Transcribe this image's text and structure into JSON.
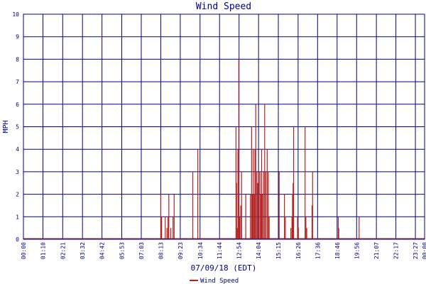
{
  "chart_data": {
    "type": "bar",
    "title": "Wind Speed",
    "xlabel": "07/09/18 (EDT)",
    "ylabel": "MPH",
    "ylim": [
      0,
      10
    ],
    "yticks": [
      "0",
      "1",
      "2",
      "3",
      "4",
      "5",
      "6",
      "7",
      "8",
      "9",
      "10"
    ],
    "xlim_minutes": [
      0,
      1440
    ],
    "xticks": [
      {
        "label": "00:00",
        "minute": 0
      },
      {
        "label": "01:10",
        "minute": 70
      },
      {
        "label": "02:21",
        "minute": 141
      },
      {
        "label": "03:32",
        "minute": 212
      },
      {
        "label": "04:42",
        "minute": 282
      },
      {
        "label": "05:53",
        "minute": 353
      },
      {
        "label": "07:03",
        "minute": 423
      },
      {
        "label": "08:13",
        "minute": 493
      },
      {
        "label": "09:23",
        "minute": 563
      },
      {
        "label": "10:34",
        "minute": 634
      },
      {
        "label": "11:44",
        "minute": 704
      },
      {
        "label": "12:54",
        "minute": 774
      },
      {
        "label": "14:04",
        "minute": 844
      },
      {
        "label": "15:15",
        "minute": 915
      },
      {
        "label": "16:26",
        "minute": 986
      },
      {
        "label": "17:36",
        "minute": 1056
      },
      {
        "label": "18:46",
        "minute": 1126
      },
      {
        "label": "19:56",
        "minute": 1196
      },
      {
        "label": "21:07",
        "minute": 1267
      },
      {
        "label": "22:17",
        "minute": 1337
      },
      {
        "label": "23:27",
        "minute": 1407
      },
      {
        "label": "00:00",
        "minute": 1440
      }
    ],
    "grid": true,
    "legend_position": "bottom-center",
    "series": [
      {
        "name": "Wind Speed",
        "color": "#b22222",
        "points": [
          {
            "t": 493,
            "v": 2
          },
          {
            "t": 496,
            "v": 1
          },
          {
            "t": 509,
            "v": 1
          },
          {
            "t": 515,
            "v": 0.5
          },
          {
            "t": 519,
            "v": 1
          },
          {
            "t": 522,
            "v": 2
          },
          {
            "t": 529,
            "v": 0.5
          },
          {
            "t": 537,
            "v": 1
          },
          {
            "t": 541,
            "v": 2
          },
          {
            "t": 608,
            "v": 3
          },
          {
            "t": 626,
            "v": 4
          },
          {
            "t": 763,
            "v": 5
          },
          {
            "t": 765,
            "v": 2.5
          },
          {
            "t": 768,
            "v": 0.5
          },
          {
            "t": 770,
            "v": 4
          },
          {
            "t": 773,
            "v": 8
          },
          {
            "t": 776,
            "v": 1
          },
          {
            "t": 780,
            "v": 1.5
          },
          {
            "t": 783,
            "v": 3
          },
          {
            "t": 798,
            "v": 2
          },
          {
            "t": 815,
            "v": 2
          },
          {
            "t": 819,
            "v": 5
          },
          {
            "t": 822,
            "v": 2
          },
          {
            "t": 825,
            "v": 4
          },
          {
            "t": 828,
            "v": 2
          },
          {
            "t": 831,
            "v": 4
          },
          {
            "t": 834,
            "v": 6
          },
          {
            "t": 838,
            "v": 3
          },
          {
            "t": 841,
            "v": 2.5
          },
          {
            "t": 845,
            "v": 3
          },
          {
            "t": 849,
            "v": 3
          },
          {
            "t": 852,
            "v": 2
          },
          {
            "t": 855,
            "v": 4
          },
          {
            "t": 858,
            "v": 2
          },
          {
            "t": 862,
            "v": 3
          },
          {
            "t": 866,
            "v": 6
          },
          {
            "t": 870,
            "v": 3
          },
          {
            "t": 875,
            "v": 4
          },
          {
            "t": 879,
            "v": 3
          },
          {
            "t": 882,
            "v": 1
          },
          {
            "t": 918,
            "v": 3
          },
          {
            "t": 937,
            "v": 2
          },
          {
            "t": 940,
            "v": 1
          },
          {
            "t": 960,
            "v": 0.5
          },
          {
            "t": 964,
            "v": 1
          },
          {
            "t": 966,
            "v": 2
          },
          {
            "t": 968,
            "v": 2.5
          },
          {
            "t": 970,
            "v": 5
          },
          {
            "t": 984,
            "v": 1
          },
          {
            "t": 987,
            "v": 0.5
          },
          {
            "t": 1011,
            "v": 5
          },
          {
            "t": 1014,
            "v": 1
          },
          {
            "t": 1017,
            "v": 0.5
          },
          {
            "t": 1036,
            "v": 1.5
          },
          {
            "t": 1038,
            "v": 3
          },
          {
            "t": 1130,
            "v": 1
          },
          {
            "t": 1132,
            "v": 0.5
          },
          {
            "t": 1205,
            "v": 1
          }
        ]
      }
    ]
  }
}
